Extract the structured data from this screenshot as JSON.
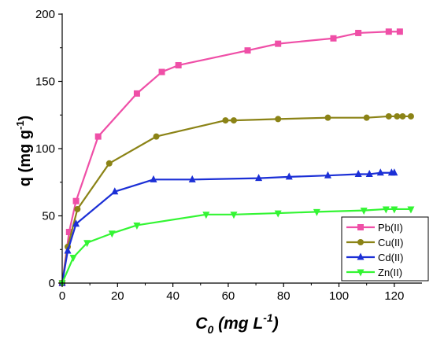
{
  "chart_data": {
    "type": "line",
    "xlabel": {
      "main": "C",
      "sub": "0",
      "rest": " (mg L",
      "sup": "-1",
      "close": ")"
    },
    "ylabel": {
      "main": "q (mg g",
      "sup": "-1",
      "close": ")"
    },
    "xlim": [
      0,
      130
    ],
    "ylim": [
      0,
      200
    ],
    "xticks": [
      0,
      20,
      40,
      60,
      80,
      100,
      120
    ],
    "yticks": [
      0,
      50,
      100,
      150,
      200
    ],
    "grid": false,
    "legend_position": "bottom-right",
    "series": [
      {
        "name": "Pb(II)",
        "color": "#ef4fa7",
        "marker": "square",
        "x": [
          0,
          2.5,
          5,
          13,
          27,
          36,
          42,
          67,
          78,
          98,
          107,
          118,
          122
        ],
        "y": [
          0,
          38,
          61,
          109,
          141,
          157,
          162,
          173,
          178,
          182,
          186,
          187,
          187
        ]
      },
      {
        "name": "Cu(II)",
        "color": "#8b8316",
        "marker": "circle",
        "x": [
          0,
          2,
          5.5,
          17,
          34,
          59,
          62,
          78,
          96,
          110,
          118,
          121,
          123,
          126
        ],
        "y": [
          0,
          27,
          55,
          89,
          109,
          121,
          121,
          122,
          123,
          123,
          124,
          124,
          124,
          124
        ]
      },
      {
        "name": "Cd(II)",
        "color": "#1b2fd6",
        "marker": "triangle-up",
        "x": [
          0,
          2,
          5,
          19,
          33,
          47,
          71,
          82,
          96,
          107,
          111,
          115,
          119,
          120
        ],
        "y": [
          0,
          24,
          44,
          68,
          77,
          77,
          78,
          79,
          80,
          81,
          81,
          82,
          82,
          82
        ]
      },
      {
        "name": "Zn(II)",
        "color": "#33f533",
        "marker": "triangle-down",
        "x": [
          0,
          4,
          9,
          18,
          27,
          52,
          62,
          78,
          92,
          109,
          117,
          120,
          126
        ],
        "y": [
          0,
          19,
          30,
          37,
          43,
          51,
          51,
          52,
          53,
          54,
          55,
          55,
          55
        ]
      }
    ]
  }
}
